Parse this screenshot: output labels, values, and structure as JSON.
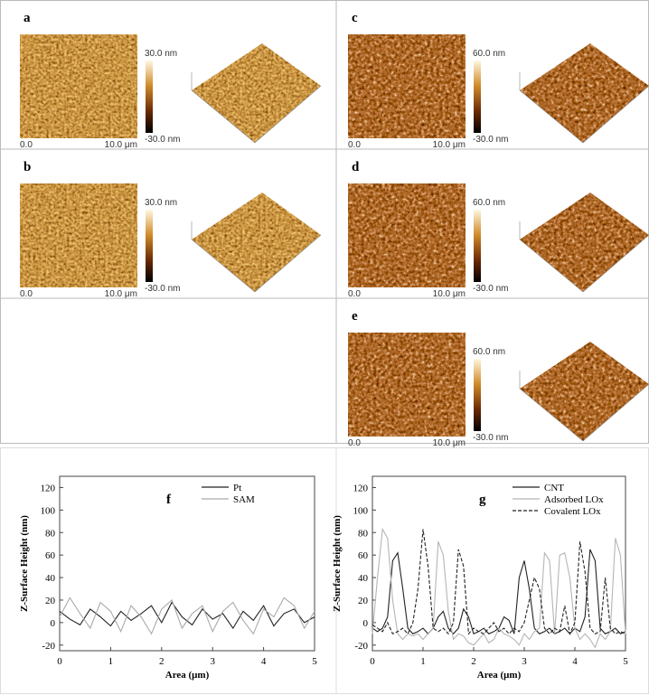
{
  "panels": [
    {
      "label": "a",
      "scale_max": "30.0 nm",
      "scale_min": "-30.0 nm",
      "x_start": "0.0",
      "x_end": "10.0 μm"
    },
    {
      "label": "b",
      "scale_max": "30.0 nm",
      "scale_min": "-30.0 nm",
      "x_start": "0.0",
      "x_end": "10.0 μm"
    },
    {
      "label": "c",
      "scale_max": "60.0 nm",
      "scale_min": "-30.0 nm",
      "x_start": "0.0",
      "x_end": "10.0 μm"
    },
    {
      "label": "d",
      "scale_max": "60.0 nm",
      "scale_min": "-30.0 nm",
      "x_start": "0.0",
      "x_end": "10.0 μm"
    },
    {
      "label": "e",
      "scale_max": "60.0 nm",
      "scale_min": "-30.0 nm",
      "x_start": "0.0",
      "x_end": "10.0 μm"
    }
  ],
  "chart_data": [
    {
      "type": "line",
      "label": "f",
      "y_label": "Z-Surface Height (nm)",
      "x_label": "Area (μm)",
      "xlim": [
        0,
        5
      ],
      "ylim": [
        -25,
        130
      ],
      "xticks": [
        0,
        1,
        2,
        3,
        4,
        5
      ],
      "yticks": [
        -20,
        0,
        20,
        40,
        60,
        80,
        100,
        120
      ],
      "legend": "upper right",
      "x": [
        0,
        0.2,
        0.4,
        0.6,
        0.8,
        1,
        1.2,
        1.4,
        1.6,
        1.8,
        2,
        2.2,
        2.4,
        2.6,
        2.8,
        3,
        3.2,
        3.4,
        3.6,
        3.8,
        4,
        4.2,
        4.4,
        4.6,
        4.8,
        5
      ],
      "series": [
        {
          "name": "Pt",
          "color": "#222222",
          "style": "solid",
          "values": [
            10,
            3,
            -2,
            12,
            5,
            -3,
            10,
            2,
            8,
            15,
            0,
            18,
            5,
            -2,
            12,
            3,
            8,
            -5,
            10,
            2,
            15,
            -3,
            8,
            12,
            0,
            5
          ]
        },
        {
          "name": "SAM",
          "color": "#aaaaaa",
          "style": "solid",
          "values": [
            5,
            22,
            8,
            -5,
            18,
            10,
            -8,
            15,
            5,
            -10,
            12,
            20,
            -5,
            8,
            15,
            -8,
            10,
            18,
            2,
            -10,
            12,
            5,
            22,
            15,
            -5,
            10
          ]
        }
      ]
    },
    {
      "type": "line",
      "label": "g",
      "y_label": "Z-Surface Height (nm)",
      "x_label": "Area (μm)",
      "xlim": [
        0,
        5
      ],
      "ylim": [
        -25,
        130
      ],
      "xticks": [
        0,
        1,
        2,
        3,
        4,
        5
      ],
      "yticks": [
        -20,
        0,
        20,
        40,
        60,
        80,
        100,
        120
      ],
      "legend": "upper right",
      "x": [
        0,
        0.1,
        0.2,
        0.3,
        0.4,
        0.5,
        0.6,
        0.7,
        0.8,
        0.9,
        1,
        1.1,
        1.2,
        1.3,
        1.4,
        1.5,
        1.6,
        1.7,
        1.8,
        1.9,
        2,
        2.1,
        2.2,
        2.3,
        2.4,
        2.5,
        2.6,
        2.7,
        2.8,
        2.9,
        3,
        3.1,
        3.2,
        3.3,
        3.4,
        3.5,
        3.6,
        3.7,
        3.8,
        3.9,
        4,
        4.1,
        4.2,
        4.3,
        4.4,
        4.5,
        4.6,
        4.7,
        4.8,
        4.9,
        5
      ],
      "series": [
        {
          "name": "CNT",
          "color": "#222222",
          "style": "solid",
          "values": [
            -5,
            -8,
            -5,
            5,
            55,
            62,
            30,
            -5,
            -10,
            -8,
            -5,
            -10,
            -5,
            5,
            10,
            -5,
            -10,
            -5,
            12,
            5,
            -10,
            -8,
            -5,
            -10,
            -8,
            -5,
            5,
            2,
            -10,
            40,
            55,
            30,
            -5,
            -10,
            -8,
            -5,
            -10,
            -8,
            -5,
            -10,
            -5,
            -8,
            5,
            65,
            55,
            -5,
            -10,
            -8,
            -5,
            -10,
            -8
          ]
        },
        {
          "name": "Adsorbed LOx",
          "color": "#b5b5b5",
          "style": "solid",
          "values": [
            -10,
            40,
            83,
            75,
            20,
            -10,
            -15,
            -10,
            -12,
            -10,
            -15,
            -10,
            -5,
            72,
            60,
            10,
            -15,
            -10,
            -12,
            -18,
            -20,
            -15,
            -10,
            -18,
            -15,
            -5,
            -10,
            -12,
            -15,
            -20,
            -10,
            -15,
            -8,
            -5,
            62,
            55,
            -10,
            60,
            62,
            40,
            -5,
            -15,
            -10,
            -15,
            -22,
            -10,
            -15,
            -8,
            75,
            60,
            -10
          ]
        },
        {
          "name": "Covalent LOx",
          "color": "#222222",
          "style": "dashed",
          "values": [
            -2,
            -5,
            -8,
            0,
            -10,
            -8,
            -5,
            -10,
            0,
            30,
            83,
            50,
            -5,
            -8,
            -5,
            -10,
            0,
            65,
            50,
            -10,
            -5,
            -8,
            -10,
            -5,
            0,
            -8,
            -5,
            -10,
            -5,
            -8,
            0,
            20,
            40,
            30,
            -5,
            -10,
            -5,
            -8,
            15,
            -10,
            0,
            72,
            45,
            -5,
            -10,
            -8,
            40,
            -5,
            -10,
            -8,
            -10
          ]
        }
      ]
    }
  ]
}
